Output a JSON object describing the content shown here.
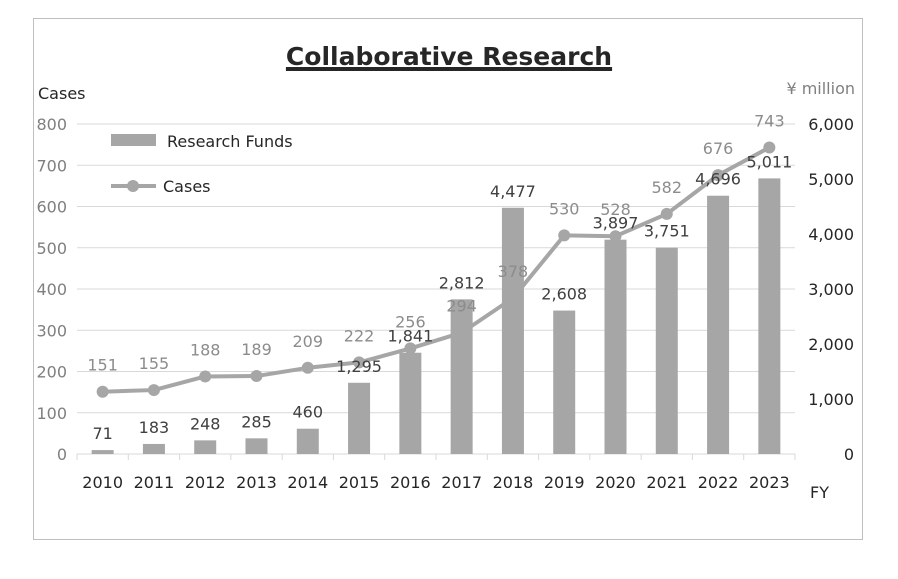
{
  "chart_data": {
    "type": "bar+line",
    "title": "Collaborative Research",
    "y_left_label": "Cases",
    "y_right_label": "¥ million",
    "x_label": "FY",
    "categories": [
      "2010",
      "2011",
      "2012",
      "2013",
      "2014",
      "2015",
      "2016",
      "2017",
      "2018",
      "2019",
      "2020",
      "2021",
      "2022",
      "2023"
    ],
    "y_left_ticks": [
      "0",
      "100",
      "200",
      "300",
      "400",
      "500",
      "600",
      "700",
      "800"
    ],
    "y_right_ticks": [
      "0",
      "1,000",
      "2,000",
      "3,000",
      "4,000",
      "5,000",
      "6,000"
    ],
    "y_left_lim": [
      0,
      800
    ],
    "y_right_lim": [
      0,
      6000
    ],
    "grid": true,
    "legend_position": "top-left",
    "series": [
      {
        "name": "Research Funds",
        "kind": "bar",
        "axis": "right",
        "color": "#a6a6a6",
        "values": [
          71,
          183,
          248,
          285,
          460,
          1295,
          1841,
          2812,
          4477,
          2608,
          3897,
          3751,
          4696,
          5011
        ],
        "labels": [
          "71",
          "183",
          "248",
          "285",
          "460",
          "1,295",
          "1,841",
          "2,812",
          "4,477",
          "2,608",
          "3,897",
          "3,751",
          "4,696",
          "5,011"
        ]
      },
      {
        "name": "Cases",
        "kind": "line",
        "axis": "left",
        "color": "#a6a6a6",
        "values": [
          151,
          155,
          188,
          189,
          209,
          222,
          256,
          294,
          378,
          530,
          528,
          582,
          676,
          743
        ],
        "labels": [
          "151",
          "155",
          "188",
          "189",
          "209",
          "222",
          "256",
          "294",
          "378",
          "530",
          "528",
          "582",
          "676",
          "743"
        ]
      }
    ]
  }
}
